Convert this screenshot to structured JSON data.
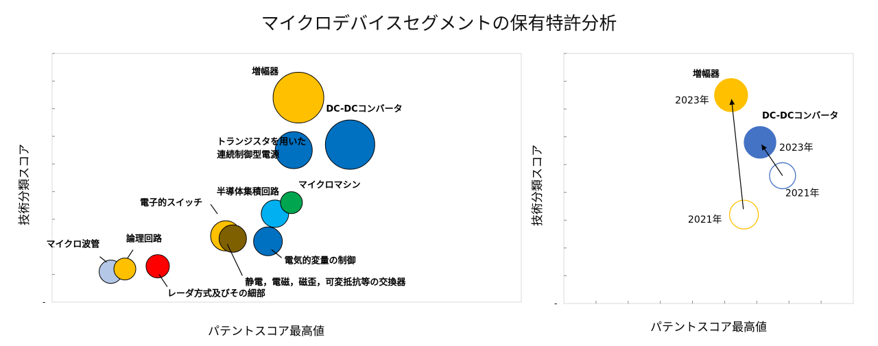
{
  "title": "マイクロデバイスセグメントの保有特許分析",
  "chart_data": [
    {
      "type": "bubble",
      "name": "segment-overview",
      "xlabel": "パテントスコア最高値",
      "ylabel": "技術分類スコア",
      "xlim": [
        0,
        20
      ],
      "ylim": [
        0,
        9
      ],
      "y_origin_label": "-",
      "ticks": {
        "x_count": 0,
        "y_count": 9
      },
      "series": [
        {
          "label": "増幅器",
          "x": 10.5,
          "y": 7.4,
          "r": 37,
          "color": "#FFC000",
          "label_dx": -68,
          "label_dy": -34
        },
        {
          "label": "DC-DCコンバータ",
          "x": 12.7,
          "y": 5.7,
          "r": 36,
          "color": "#0070C0",
          "label_dx": -35,
          "label_dy": -48
        },
        {
          "label": "トランジスタを用いた",
          "label2": "連続制御型電源",
          "x": 10.3,
          "y": 5.5,
          "r": 27,
          "color": "#0070C0",
          "label_dx": -112,
          "label_dy": -8
        },
        {
          "label": "半導体集積回路",
          "x": 9.5,
          "y": 3.2,
          "r": 20,
          "color": "#00B0F0",
          "label_dx": -85,
          "label_dy": -28
        },
        {
          "label": "マイクロマシン",
          "x": 10.2,
          "y": 3.6,
          "r": 16,
          "color": "#00A550",
          "label_dx": 10,
          "label_dy": -22
        },
        {
          "label": "電子的スイッチ",
          "x": 7.4,
          "y": 2.4,
          "r": 22,
          "color": "#FFC000",
          "label_dx": -125,
          "label_dy": -44,
          "line": [
            [
              -22,
              -46
            ],
            [
              -12,
              -32
            ]
          ]
        },
        {
          "label": "静電，電磁，磁歪，可変抵抗等の交換器",
          "x": 7.7,
          "y": 2.3,
          "r": 20,
          "color": "#7F6000",
          "label_dx": 18,
          "label_dy": 68,
          "line": [
            [
              -8,
              8
            ],
            [
              14,
              54
            ]
          ]
        },
        {
          "label": "電気的変量の制御",
          "x": 9.2,
          "y": 2.2,
          "r": 21,
          "color": "#0070C0",
          "label_dx": 24,
          "label_dy": 32,
          "line": [
            [
              5,
              12
            ],
            [
              20,
              24
            ]
          ]
        },
        {
          "label": "マイクロ波管",
          "x": 2.5,
          "y": 1.1,
          "r": 17,
          "color": "#B4C7E7",
          "label_dx": -94,
          "label_dy": -36,
          "line": [
            [
              -16,
              -22
            ],
            [
              -6,
              -14
            ]
          ]
        },
        {
          "label": "論理回路",
          "x": 3.1,
          "y": 1.2,
          "r": 16,
          "color": "#FFC000",
          "label_dx": 2,
          "label_dy": -40,
          "line": [
            [
              12,
              -28
            ],
            [
              4,
              -16
            ]
          ]
        },
        {
          "label": "レーダ方式及びその細部",
          "x": 4.5,
          "y": 1.3,
          "r": 17,
          "color": "#FF0000",
          "label_dx": 14,
          "label_dy": 44,
          "line": [
            [
              2,
              12
            ],
            [
              14,
              30
            ]
          ]
        }
      ]
    },
    {
      "type": "bubble-shift",
      "name": "yearly-shift",
      "xlabel": "パテントスコア最高値",
      "ylabel": "技術分類スコア",
      "xlim": [
        0,
        9
      ],
      "ylim": [
        0,
        9
      ],
      "y_origin_label": "-",
      "ticks": {
        "x_count": 9,
        "y_count": 9
      },
      "series": [
        {
          "label": "増幅器",
          "color": "#FFC000",
          "from": {
            "year": "2021年",
            "x": 5.6,
            "y": 3.2,
            "r": 21,
            "filled": false
          },
          "to": {
            "year": "2023年",
            "x": 5.2,
            "y": 7.5,
            "r": 24,
            "filled": true
          }
        },
        {
          "label": "DC-DCコンバータ",
          "color": "#4472C4",
          "from": {
            "year": "2021年",
            "x": 6.8,
            "y": 4.6,
            "r": 19,
            "filled": false
          },
          "to": {
            "year": "2023年",
            "x": 6.1,
            "y": 5.8,
            "r": 23,
            "filled": true
          }
        }
      ]
    }
  ]
}
